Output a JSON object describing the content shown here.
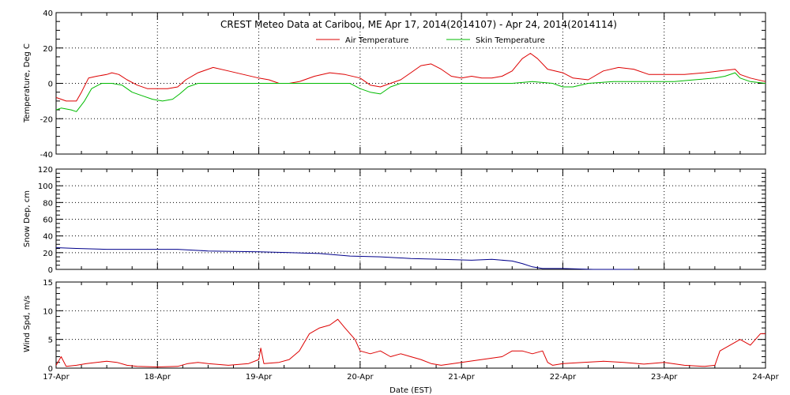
{
  "chart_data": [
    {
      "type": "line",
      "panel": "temperature",
      "title": "CREST Meteo Data at Caribou, ME   Apr 17, 2014(2014107) - Apr 24, 2014(2014114)",
      "ylabel": "Temperature, Deg C",
      "ylim": [
        -40,
        40
      ],
      "yticks": [
        -40,
        -20,
        0,
        20,
        40
      ],
      "y_minor_step": 5,
      "xlim": [
        0,
        7
      ],
      "xticks": [
        0,
        1,
        2,
        3,
        4,
        5,
        6,
        7
      ],
      "xticklabels": [
        "17-Apr",
        "18-Apr",
        "19-Apr",
        "20-Apr",
        "21-Apr",
        "22-Apr",
        "23-Apr",
        "24-Apr"
      ],
      "grid": true,
      "legend": "top-center",
      "series": [
        {
          "name": "Air Temperature",
          "color": "#dd0000",
          "points": [
            [
              0.0,
              -8
            ],
            [
              0.1,
              -10
            ],
            [
              0.2,
              -10
            ],
            [
              0.25,
              -5
            ],
            [
              0.32,
              3
            ],
            [
              0.4,
              4
            ],
            [
              0.5,
              5
            ],
            [
              0.55,
              6
            ],
            [
              0.62,
              5
            ],
            [
              0.7,
              2
            ],
            [
              0.8,
              -1
            ],
            [
              0.9,
              -3
            ],
            [
              1.0,
              -3
            ],
            [
              1.1,
              -3
            ],
            [
              1.2,
              -2
            ],
            [
              1.28,
              2
            ],
            [
              1.4,
              6
            ],
            [
              1.55,
              9
            ],
            [
              1.7,
              7
            ],
            [
              1.85,
              5
            ],
            [
              2.0,
              3
            ],
            [
              2.1,
              2
            ],
            [
              2.2,
              0
            ],
            [
              2.3,
              0
            ],
            [
              2.4,
              1
            ],
            [
              2.55,
              4
            ],
            [
              2.7,
              6
            ],
            [
              2.85,
              5
            ],
            [
              3.0,
              3
            ],
            [
              3.1,
              -1
            ],
            [
              3.2,
              -2
            ],
            [
              3.3,
              0
            ],
            [
              3.4,
              2
            ],
            [
              3.5,
              6
            ],
            [
              3.6,
              10
            ],
            [
              3.7,
              11
            ],
            [
              3.8,
              8
            ],
            [
              3.9,
              4
            ],
            [
              4.0,
              3
            ],
            [
              4.1,
              4
            ],
            [
              4.2,
              3
            ],
            [
              4.3,
              3
            ],
            [
              4.4,
              4
            ],
            [
              4.5,
              7
            ],
            [
              4.6,
              14
            ],
            [
              4.68,
              17
            ],
            [
              4.75,
              14
            ],
            [
              4.85,
              8
            ],
            [
              5.0,
              6
            ],
            [
              5.1,
              3
            ],
            [
              5.25,
              2
            ],
            [
              5.4,
              7
            ],
            [
              5.55,
              9
            ],
            [
              5.7,
              8
            ],
            [
              5.85,
              5
            ],
            [
              6.0,
              5
            ],
            [
              6.2,
              5
            ],
            [
              6.4,
              6
            ],
            [
              6.55,
              7
            ],
            [
              6.7,
              8
            ],
            [
              6.75,
              5
            ],
            [
              6.85,
              3
            ],
            [
              7.0,
              1
            ]
          ]
        },
        {
          "name": "Skin Temperature",
          "color": "#00bb00",
          "points": [
            [
              0.0,
              -15
            ],
            [
              0.05,
              -14
            ],
            [
              0.15,
              -15
            ],
            [
              0.2,
              -16
            ],
            [
              0.28,
              -10
            ],
            [
              0.35,
              -3
            ],
            [
              0.45,
              0
            ],
            [
              0.55,
              0
            ],
            [
              0.65,
              -1
            ],
            [
              0.75,
              -5
            ],
            [
              0.85,
              -7
            ],
            [
              0.95,
              -9
            ],
            [
              1.05,
              -10
            ],
            [
              1.15,
              -9
            ],
            [
              1.22,
              -6
            ],
            [
              1.3,
              -2
            ],
            [
              1.4,
              0
            ],
            [
              1.6,
              0
            ],
            [
              2.0,
              0
            ],
            [
              2.2,
              0
            ],
            [
              2.6,
              0
            ],
            [
              2.9,
              0
            ],
            [
              3.0,
              -3
            ],
            [
              3.1,
              -5
            ],
            [
              3.2,
              -6
            ],
            [
              3.3,
              -2
            ],
            [
              3.4,
              0
            ],
            [
              3.8,
              0
            ],
            [
              4.0,
              0
            ],
            [
              4.2,
              0
            ],
            [
              4.5,
              0
            ],
            [
              4.7,
              1
            ],
            [
              4.9,
              0
            ],
            [
              5.0,
              -2
            ],
            [
              5.1,
              -2
            ],
            [
              5.25,
              0
            ],
            [
              5.5,
              1
            ],
            [
              5.7,
              1
            ],
            [
              5.9,
              1
            ],
            [
              6.1,
              1
            ],
            [
              6.3,
              2
            ],
            [
              6.5,
              3
            ],
            [
              6.6,
              4
            ],
            [
              6.7,
              6
            ],
            [
              6.75,
              3
            ],
            [
              6.85,
              1
            ],
            [
              7.0,
              0
            ]
          ]
        }
      ]
    },
    {
      "type": "line",
      "panel": "snow",
      "ylabel": "Snow Dep, cm",
      "ylim": [
        0,
        120
      ],
      "yticks": [
        0,
        20,
        40,
        60,
        80,
        100,
        120
      ],
      "y_minor_step": 5,
      "xlim": [
        0,
        7
      ],
      "grid": true,
      "series": [
        {
          "color": "#00008b",
          "points": [
            [
              0.0,
              26
            ],
            [
              0.2,
              25
            ],
            [
              0.5,
              24
            ],
            [
              1.0,
              24
            ],
            [
              1.2,
              24
            ],
            [
              1.5,
              22
            ],
            [
              2.0,
              21
            ],
            [
              2.3,
              20
            ],
            [
              2.6,
              19
            ],
            [
              2.9,
              16
            ],
            [
              3.2,
              15
            ],
            [
              3.5,
              13
            ],
            [
              3.8,
              12
            ],
            [
              4.1,
              11
            ],
            [
              4.3,
              12
            ],
            [
              4.5,
              10
            ],
            [
              4.6,
              7
            ],
            [
              4.7,
              3
            ],
            [
              4.8,
              1
            ],
            [
              5.0,
              1
            ],
            [
              5.3,
              0
            ],
            [
              5.5,
              0
            ],
            [
              5.7,
              0
            ]
          ]
        }
      ]
    },
    {
      "type": "line",
      "panel": "wind",
      "ylabel": "Wind Spd, m/s",
      "xlabel": "Date (EST)",
      "ylim": [
        0,
        15
      ],
      "yticks": [
        0,
        5,
        10,
        15
      ],
      "y_minor_step": 1,
      "xlim": [
        0,
        7
      ],
      "grid": true,
      "series": [
        {
          "color": "#dd0000",
          "points": [
            [
              0.0,
              0.5
            ],
            [
              0.05,
              2
            ],
            [
              0.1,
              0.3
            ],
            [
              0.2,
              0.5
            ],
            [
              0.3,
              0.8
            ],
            [
              0.4,
              1
            ],
            [
              0.5,
              1.2
            ],
            [
              0.6,
              1
            ],
            [
              0.7,
              0.5
            ],
            [
              0.8,
              0.3
            ],
            [
              1.0,
              0.2
            ],
            [
              1.2,
              0.3
            ],
            [
              1.3,
              0.8
            ],
            [
              1.4,
              1
            ],
            [
              1.5,
              0.8
            ],
            [
              1.7,
              0.5
            ],
            [
              1.9,
              0.8
            ],
            [
              2.0,
              1.5
            ],
            [
              2.02,
              3.5
            ],
            [
              2.05,
              0.8
            ],
            [
              2.2,
              1
            ],
            [
              2.3,
              1.5
            ],
            [
              2.4,
              3
            ],
            [
              2.5,
              6
            ],
            [
              2.6,
              7
            ],
            [
              2.7,
              7.5
            ],
            [
              2.78,
              8.5
            ],
            [
              2.85,
              7
            ],
            [
              2.95,
              5
            ],
            [
              3.0,
              3
            ],
            [
              3.1,
              2.5
            ],
            [
              3.2,
              3
            ],
            [
              3.3,
              2
            ],
            [
              3.4,
              2.5
            ],
            [
              3.5,
              2
            ],
            [
              3.6,
              1.5
            ],
            [
              3.7,
              0.8
            ],
            [
              3.8,
              0.5
            ],
            [
              4.0,
              1
            ],
            [
              4.2,
              1.5
            ],
            [
              4.4,
              2
            ],
            [
              4.5,
              3
            ],
            [
              4.6,
              3
            ],
            [
              4.7,
              2.5
            ],
            [
              4.8,
              3
            ],
            [
              4.85,
              1
            ],
            [
              4.9,
              0.5
            ],
            [
              5.0,
              0.8
            ],
            [
              5.2,
              1
            ],
            [
              5.4,
              1.2
            ],
            [
              5.6,
              1
            ],
            [
              5.8,
              0.7
            ],
            [
              6.0,
              1
            ],
            [
              6.2,
              0.5
            ],
            [
              6.4,
              0.3
            ],
            [
              6.5,
              0.5
            ],
            [
              6.55,
              3
            ],
            [
              6.65,
              4
            ],
            [
              6.75,
              5
            ],
            [
              6.85,
              4
            ],
            [
              6.95,
              6
            ],
            [
              7.0,
              6
            ]
          ]
        }
      ]
    }
  ]
}
